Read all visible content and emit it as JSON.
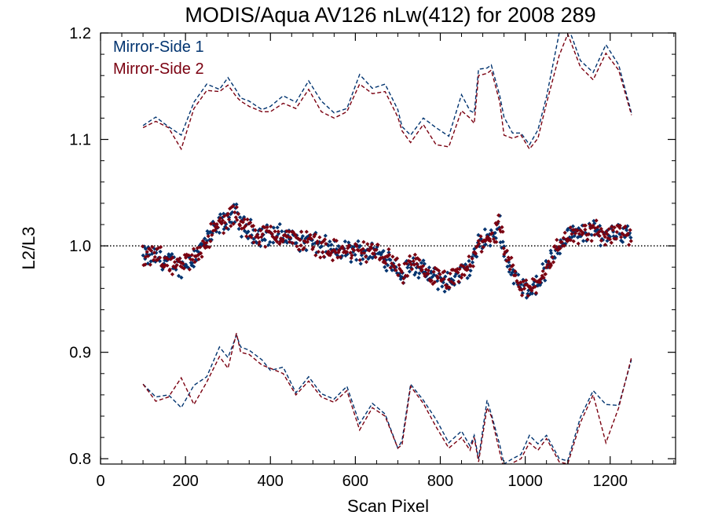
{
  "chart_data": {
    "type": "scatter",
    "title": "MODIS/Aqua AV126 nLw(412) for 2008 289",
    "xlabel": "Scan Pixel",
    "ylabel": "L2/L3",
    "xlim": [
      0,
      1354
    ],
    "ylim": [
      0.795,
      1.2
    ],
    "xticks": [
      {
        "value": 0,
        "label": "0"
      },
      {
        "value": 200,
        "label": "200"
      },
      {
        "value": 400,
        "label": "400"
      },
      {
        "value": 600,
        "label": "600"
      },
      {
        "value": 800,
        "label": "800"
      },
      {
        "value": 1000,
        "label": "1000"
      },
      {
        "value": 1200,
        "label": "1200"
      }
    ],
    "yticks": [
      {
        "value": 0.8,
        "label": "0.8"
      },
      {
        "value": 0.9,
        "label": "0.9"
      },
      {
        "value": 1.0,
        "label": "1.0"
      },
      {
        "value": 1.1,
        "label": "1.1"
      },
      {
        "value": 1.2,
        "label": "1.2"
      }
    ],
    "reference_line": 1.0,
    "legend_position": "top-left",
    "series": [
      {
        "name": "Mirror-Side 1",
        "color": "#00336f",
        "mean_x": [
          100,
          130,
          160,
          190,
          220,
          250,
          280,
          300,
          320,
          330,
          350,
          380,
          400,
          430,
          460,
          490,
          520,
          550,
          580,
          610,
          640,
          670,
          700,
          710,
          730,
          760,
          790,
          820,
          850,
          870,
          880,
          890,
          910,
          920,
          940,
          950,
          970,
          990,
          1010,
          1030,
          1050,
          1080,
          1100,
          1130,
          1160,
          1190,
          1220,
          1250
        ],
        "mean_y": [
          0.99,
          0.99,
          0.985,
          0.98,
          0.99,
          1.005,
          1.02,
          1.025,
          1.03,
          1.02,
          1.015,
          1.01,
          1.01,
          1.01,
          1.005,
          1.005,
          1.0,
          0.995,
          0.995,
          0.995,
          0.995,
          0.99,
          0.98,
          0.97,
          0.985,
          0.975,
          0.97,
          0.965,
          0.975,
          0.98,
          0.99,
          1.0,
          1.01,
          1.005,
          1.02,
          0.995,
          0.975,
          0.96,
          0.96,
          0.965,
          0.98,
          1.0,
          1.01,
          1.01,
          1.015,
          1.01,
          1.015,
          1.01
        ],
        "upper_y": [
          1.113,
          1.121,
          1.112,
          1.104,
          1.135,
          1.152,
          1.147,
          1.158,
          1.146,
          1.139,
          1.136,
          1.128,
          1.131,
          1.141,
          1.135,
          1.155,
          1.136,
          1.125,
          1.129,
          1.161,
          1.148,
          1.152,
          1.128,
          1.112,
          1.104,
          1.12,
          1.111,
          1.103,
          1.142,
          1.127,
          1.125,
          1.166,
          1.167,
          1.17,
          1.141,
          1.121,
          1.106,
          1.106,
          1.095,
          1.109,
          1.14,
          1.2,
          1.207,
          1.174,
          1.163,
          1.189,
          1.17,
          1.125
        ],
        "lower_y": [
          0.87,
          0.858,
          0.86,
          0.848,
          0.869,
          0.877,
          0.905,
          0.895,
          0.916,
          0.905,
          0.902,
          0.893,
          0.883,
          0.886,
          0.862,
          0.877,
          0.861,
          0.856,
          0.868,
          0.833,
          0.852,
          0.842,
          0.81,
          0.817,
          0.87,
          0.855,
          0.837,
          0.815,
          0.826,
          0.812,
          0.822,
          0.8,
          0.855,
          0.842,
          0.813,
          0.795,
          0.8,
          0.804,
          0.822,
          0.814,
          0.822,
          0.8,
          0.798,
          0.839,
          0.864,
          0.851,
          0.85,
          0.893
        ]
      },
      {
        "name": "Mirror-Side 2",
        "color": "#7a0010",
        "mean_x": [
          100,
          130,
          160,
          190,
          220,
          250,
          280,
          300,
          320,
          330,
          350,
          380,
          400,
          430,
          460,
          490,
          520,
          550,
          580,
          610,
          640,
          670,
          700,
          710,
          730,
          760,
          790,
          820,
          850,
          870,
          880,
          890,
          910,
          920,
          940,
          950,
          970,
          990,
          1010,
          1030,
          1050,
          1080,
          1100,
          1130,
          1160,
          1190,
          1220,
          1250
        ],
        "mean_y": [
          0.99,
          0.99,
          0.985,
          0.98,
          0.99,
          1.005,
          1.02,
          1.025,
          1.03,
          1.02,
          1.015,
          1.01,
          1.01,
          1.01,
          1.005,
          1.005,
          1.0,
          0.995,
          0.995,
          0.995,
          0.995,
          0.99,
          0.98,
          0.97,
          0.985,
          0.975,
          0.97,
          0.965,
          0.975,
          0.98,
          0.99,
          1.0,
          1.01,
          1.005,
          1.02,
          0.995,
          0.975,
          0.96,
          0.96,
          0.965,
          0.98,
          1.0,
          1.01,
          1.01,
          1.015,
          1.01,
          1.015,
          1.01
        ],
        "upper_y": [
          1.111,
          1.117,
          1.111,
          1.091,
          1.129,
          1.146,
          1.145,
          1.151,
          1.14,
          1.136,
          1.131,
          1.126,
          1.126,
          1.134,
          1.129,
          1.147,
          1.126,
          1.12,
          1.126,
          1.152,
          1.143,
          1.145,
          1.121,
          1.108,
          1.097,
          1.114,
          1.095,
          1.093,
          1.127,
          1.12,
          1.115,
          1.16,
          1.162,
          1.165,
          1.135,
          1.104,
          1.101,
          1.104,
          1.091,
          1.101,
          1.134,
          1.179,
          1.199,
          1.168,
          1.156,
          1.181,
          1.165,
          1.123
        ],
        "lower_y": [
          0.87,
          0.854,
          0.858,
          0.876,
          0.851,
          0.872,
          0.896,
          0.885,
          0.918,
          0.9,
          0.898,
          0.888,
          0.885,
          0.88,
          0.86,
          0.873,
          0.858,
          0.853,
          0.864,
          0.827,
          0.848,
          0.84,
          0.81,
          0.813,
          0.868,
          0.852,
          0.83,
          0.81,
          0.82,
          0.808,
          0.82,
          0.797,
          0.848,
          0.84,
          0.806,
          0.79,
          0.796,
          0.8,
          0.815,
          0.808,
          0.819,
          0.797,
          0.795,
          0.834,
          0.86,
          0.815,
          0.848,
          0.895
        ]
      }
    ]
  }
}
